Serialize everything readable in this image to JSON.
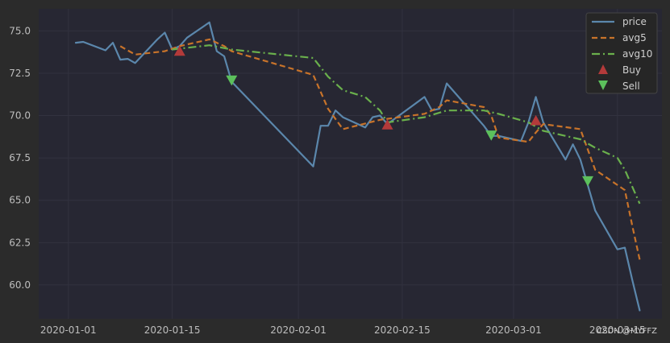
{
  "chart_data": {
    "type": "line",
    "title": "",
    "xlabel": "",
    "ylabel": "",
    "x_ticks": [
      "2020-01-01",
      "2020-01-15",
      "2020-02-01",
      "2020-02-15",
      "2020-03-01",
      "2020-03-15"
    ],
    "y_ticks": [
      "60.0",
      "62.5",
      "65.0",
      "67.5",
      "70.0",
      "72.5",
      "75.0"
    ],
    "xlim": [
      "2019-12-28",
      "2020-03-21"
    ],
    "ylim": [
      58.0,
      76.3
    ],
    "grid": true,
    "legend_position": "top-right",
    "series": [
      {
        "name": "price",
        "style": "solid",
        "color": "#5b87ac",
        "points": [
          [
            "2020-01-02",
            74.3
          ],
          [
            "2020-01-03",
            74.35
          ],
          [
            "2020-01-06",
            73.85
          ],
          [
            "2020-01-07",
            74.3
          ],
          [
            "2020-01-08",
            73.3
          ],
          [
            "2020-01-09",
            73.35
          ],
          [
            "2020-01-10",
            73.1
          ],
          [
            "2020-01-13",
            74.5
          ],
          [
            "2020-01-14",
            74.9
          ],
          [
            "2020-01-15",
            73.9
          ],
          [
            "2020-01-16",
            74.1
          ],
          [
            "2020-01-17",
            74.6
          ],
          [
            "2020-01-20",
            75.5
          ],
          [
            "2020-01-21",
            73.8
          ],
          [
            "2020-01-22",
            73.5
          ],
          [
            "2020-01-23",
            72.0
          ],
          [
            "2020-02-03",
            67.0
          ],
          [
            "2020-02-04",
            69.4
          ],
          [
            "2020-02-05",
            69.4
          ],
          [
            "2020-02-06",
            70.3
          ],
          [
            "2020-02-07",
            69.9
          ],
          [
            "2020-02-10",
            69.3
          ],
          [
            "2020-02-11",
            69.9
          ],
          [
            "2020-02-12",
            70.0
          ],
          [
            "2020-02-13",
            69.5
          ],
          [
            "2020-02-18",
            71.1
          ],
          [
            "2020-02-19",
            70.3
          ],
          [
            "2020-02-20",
            70.4
          ],
          [
            "2020-02-21",
            71.9
          ],
          [
            "2020-02-26",
            69.4
          ],
          [
            "2020-02-27",
            68.8
          ],
          [
            "2020-02-28",
            68.8
          ],
          [
            "2020-03-02",
            68.5
          ],
          [
            "2020-03-03",
            69.6
          ],
          [
            "2020-03-04",
            71.1
          ],
          [
            "2020-03-05",
            69.6
          ],
          [
            "2020-03-08",
            67.4
          ],
          [
            "2020-03-09",
            68.3
          ],
          [
            "2020-03-10",
            67.4
          ],
          [
            "2020-03-12",
            64.4
          ],
          [
            "2020-03-15",
            62.1
          ],
          [
            "2020-03-16",
            62.2
          ],
          [
            "2020-03-17",
            60.3
          ],
          [
            "2020-03-18",
            58.5
          ]
        ]
      },
      {
        "name": "avg5",
        "style": "dashed",
        "color": "#c8732a",
        "points": [
          [
            "2020-01-08",
            74.1
          ],
          [
            "2020-01-10",
            73.6
          ],
          [
            "2020-01-14",
            73.8
          ],
          [
            "2020-01-16",
            74.1
          ],
          [
            "2020-01-20",
            74.5
          ],
          [
            "2020-01-22",
            74.1
          ],
          [
            "2020-01-23",
            73.8
          ],
          [
            "2020-02-03",
            72.4
          ],
          [
            "2020-02-05",
            70.4
          ],
          [
            "2020-02-07",
            69.2
          ],
          [
            "2020-02-12",
            69.75
          ],
          [
            "2020-02-18",
            70.1
          ],
          [
            "2020-02-20",
            70.5
          ],
          [
            "2020-02-21",
            70.9
          ],
          [
            "2020-02-26",
            70.5
          ],
          [
            "2020-02-27",
            70.0
          ],
          [
            "2020-02-28",
            68.7
          ],
          [
            "2020-03-03",
            68.45
          ],
          [
            "2020-03-04",
            69.0
          ],
          [
            "2020-03-05",
            69.5
          ],
          [
            "2020-03-10",
            69.2
          ],
          [
            "2020-03-12",
            66.8
          ],
          [
            "2020-03-16",
            65.6
          ],
          [
            "2020-03-17",
            63.5
          ],
          [
            "2020-03-18",
            61.5
          ]
        ]
      },
      {
        "name": "avg10",
        "style": "dashdot",
        "color": "#6ab04c",
        "points": [
          [
            "2020-01-15",
            73.9
          ],
          [
            "2020-01-20",
            74.15
          ],
          [
            "2020-01-23",
            73.9
          ],
          [
            "2020-02-03",
            73.4
          ],
          [
            "2020-02-05",
            72.3
          ],
          [
            "2020-02-07",
            71.5
          ],
          [
            "2020-02-10",
            71.1
          ],
          [
            "2020-02-12",
            70.3
          ],
          [
            "2020-02-13",
            69.6
          ],
          [
            "2020-02-18",
            69.9
          ],
          [
            "2020-02-21",
            70.3
          ],
          [
            "2020-02-26",
            70.3
          ],
          [
            "2020-02-28",
            70.1
          ],
          [
            "2020-03-03",
            69.6
          ],
          [
            "2020-03-05",
            69.1
          ],
          [
            "2020-03-10",
            68.6
          ],
          [
            "2020-03-12",
            68.1
          ],
          [
            "2020-03-15",
            67.5
          ],
          [
            "2020-03-16",
            66.8
          ],
          [
            "2020-03-18",
            64.8
          ]
        ]
      }
    ],
    "markers": [
      {
        "name": "Buy",
        "symbol": "triangle-up",
        "color": "#b33a3a",
        "points": [
          [
            "2020-01-16",
            73.8
          ],
          [
            "2020-02-13",
            69.45
          ],
          [
            "2020-03-04",
            69.7
          ]
        ]
      },
      {
        "name": "Sell",
        "symbol": "triangle-down",
        "color": "#5cc05c",
        "points": [
          [
            "2020-01-23",
            72.1
          ],
          [
            "2020-02-27",
            68.85
          ],
          [
            "2020-03-11",
            66.15
          ]
        ]
      }
    ],
    "colors": {
      "figure_bg": "#2b2b2b",
      "axes_bg": "#272733",
      "grid": "#32323f",
      "legend_bg": "#262626",
      "legend_border": "#444444"
    }
  },
  "watermark": "CSDN @MYFFZ"
}
